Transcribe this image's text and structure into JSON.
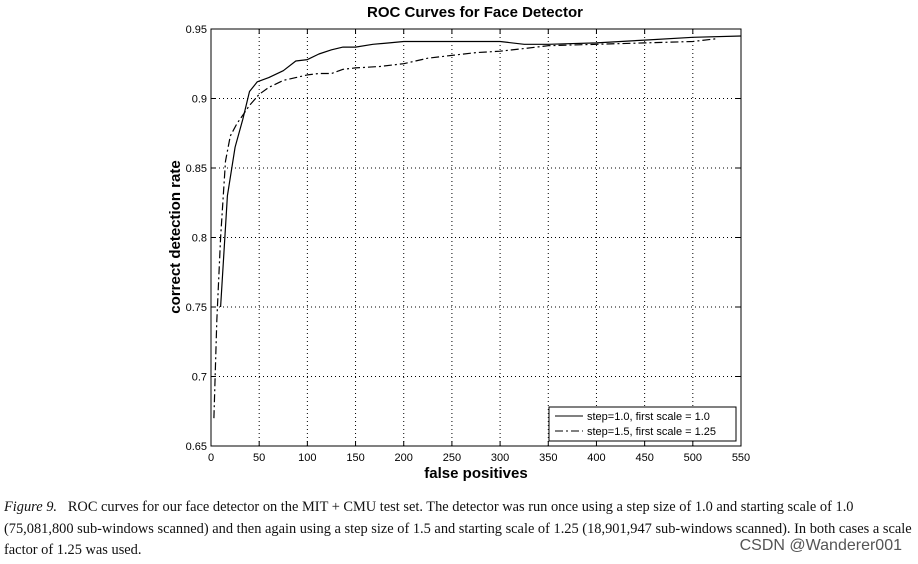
{
  "chart_data": {
    "type": "line",
    "title": "ROC Curves for Face Detector",
    "xlabel": "false positives",
    "ylabel": "correct detection rate",
    "xlim": [
      0,
      550
    ],
    "ylim": [
      0.65,
      0.95
    ],
    "xticks": [
      0,
      50,
      100,
      150,
      200,
      250,
      300,
      350,
      400,
      450,
      500,
      550
    ],
    "yticks": [
      0.65,
      0.7,
      0.75,
      0.8,
      0.85,
      0.9,
      0.95
    ],
    "xtick_labels": [
      "0",
      "50",
      "100",
      "150",
      "200",
      "250",
      "300",
      "350",
      "400",
      "450",
      "500",
      "550"
    ],
    "ytick_labels": [
      "0.65",
      "0.7",
      "0.75",
      "0.8",
      "0.85",
      "0.9",
      "0.95"
    ],
    "grid": true,
    "legend_position": "bottom-right",
    "series": [
      {
        "name": "step=1.0, first scale = 1.0",
        "style": "solid",
        "x": [
          10,
          17,
          25,
          33,
          40,
          48,
          60,
          75,
          88,
          100,
          112,
          125,
          137,
          150,
          168,
          185,
          200,
          225,
          250,
          275,
          300,
          325,
          350,
          400,
          450,
          500,
          550
        ],
        "y": [
          0.75,
          0.83,
          0.865,
          0.885,
          0.905,
          0.912,
          0.915,
          0.92,
          0.927,
          0.928,
          0.932,
          0.935,
          0.937,
          0.937,
          0.939,
          0.94,
          0.941,
          0.941,
          0.941,
          0.941,
          0.941,
          0.939,
          0.939,
          0.94,
          0.942,
          0.944,
          0.945
        ]
      },
      {
        "name": "step=1.5, first scale = 1.25",
        "style": "dashdot",
        "x": [
          3,
          6,
          10,
          15,
          20,
          27,
          33,
          40,
          50,
          60,
          75,
          88,
          100,
          112,
          125,
          137,
          150,
          175,
          200,
          225,
          250,
          275,
          300,
          325,
          350,
          400,
          450,
          500,
          525
        ],
        "y": [
          0.67,
          0.74,
          0.8,
          0.855,
          0.873,
          0.882,
          0.888,
          0.895,
          0.903,
          0.908,
          0.913,
          0.915,
          0.917,
          0.918,
          0.918,
          0.921,
          0.922,
          0.923,
          0.925,
          0.929,
          0.931,
          0.933,
          0.934,
          0.936,
          0.938,
          0.939,
          0.94,
          0.941,
          0.943
        ]
      }
    ]
  },
  "caption": {
    "label": "Figure 9.",
    "text": "ROC curves for our face detector on the MIT + CMU test set. The detector was run once using a step size of 1.0 and starting scale of 1.0 (75,081,800 sub-windows scanned) and then again using a step size of 1.5 and starting scale of 1.25 (18,901,947 sub-windows scanned). In both cases a scale factor of 1.25 was used."
  },
  "watermark": "CSDN @Wanderer001"
}
